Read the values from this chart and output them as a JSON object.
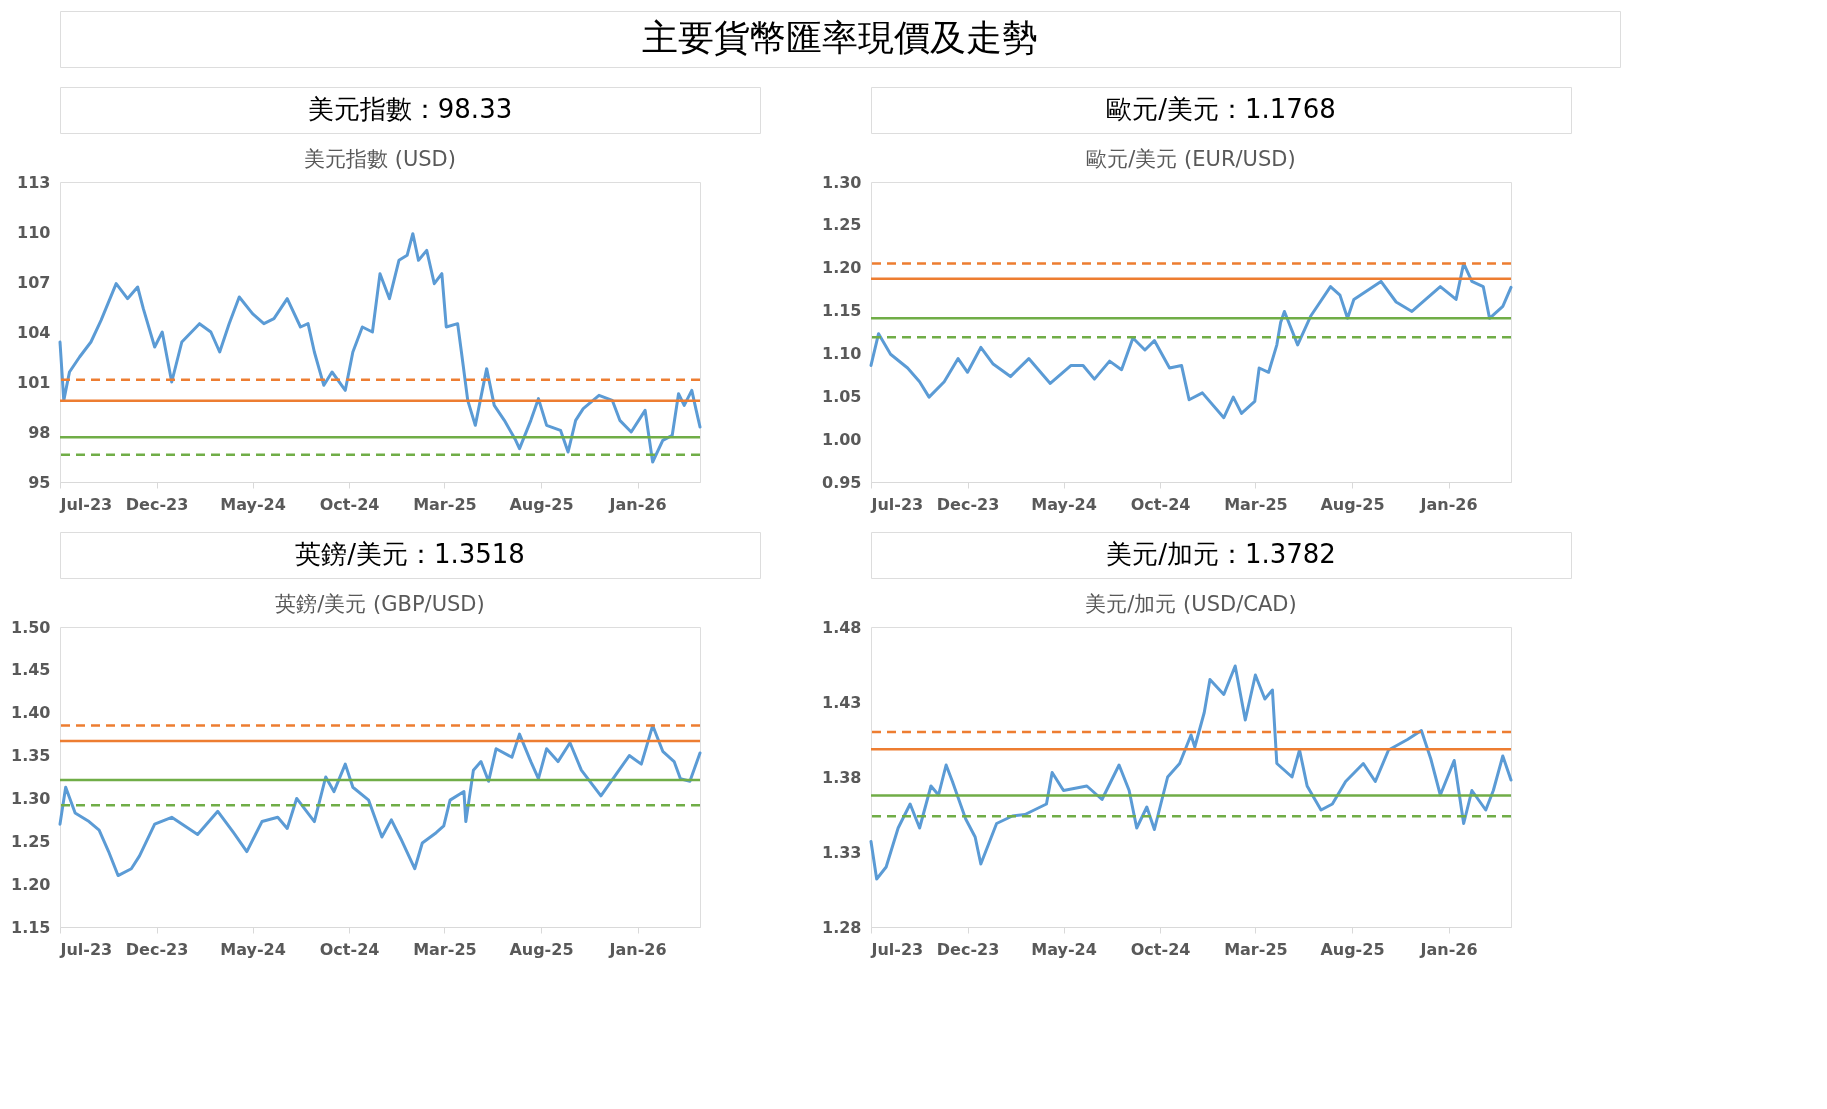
{
  "chart_data": [
    {
      "type": "other",
      "title": "主要貨幣匯率現價及走勢"
    },
    {
      "type": "line",
      "title": "美元指數 (USD)",
      "annotations": [
        "美元指數：98.33"
      ],
      "x": [
        "2023-07-01",
        "2023-07-07",
        "2023-07-16",
        "2023-08-01",
        "2023-08-19",
        "2023-09-04",
        "2023-09-28",
        "2023-10-16",
        "2023-11-01",
        "2023-11-10",
        "2023-11-28",
        "2023-12-10",
        "2023-12-25",
        "2024-01-10",
        "2024-02-07",
        "2024-02-25",
        "2024-03-10",
        "2024-03-25",
        "2024-04-10",
        "2024-05-01",
        "2024-05-19",
        "2024-06-04",
        "2024-06-25",
        "2024-07-16",
        "2024-07-28",
        "2024-08-07",
        "2024-08-22",
        "2024-09-04",
        "2024-09-25",
        "2024-10-07",
        "2024-10-22",
        "2024-11-07",
        "2024-11-19",
        "2024-12-04",
        "2024-12-19",
        "2025-01-01",
        "2025-01-10",
        "2025-01-19",
        "2025-02-01",
        "2025-02-13",
        "2025-02-25",
        "2025-03-04",
        "2025-03-22",
        "2025-03-28",
        "2025-04-07",
        "2025-04-19",
        "2025-05-07",
        "2025-05-19",
        "2025-06-04",
        "2025-06-22",
        "2025-06-28",
        "2025-07-16",
        "2025-07-28",
        "2025-08-10",
        "2025-09-01",
        "2025-09-13",
        "2025-09-25",
        "2025-10-07",
        "2025-11-01",
        "2025-11-22",
        "2025-12-04",
        "2025-12-22",
        "2026-01-13",
        "2026-01-25",
        "2026-02-10",
        "2026-02-25",
        "2026-03-07",
        "2026-03-16",
        "2026-03-28",
        "2026-04-04",
        "2026-04-10"
      ],
      "series": [
        {
          "color": "#5b9bd5",
          "values": [
            103.4,
            99.9,
            101.6,
            102.5,
            103.4,
            104.7,
            106.9,
            106.0,
            106.7,
            105.4,
            103.1,
            104.0,
            101.0,
            103.4,
            104.5,
            104.0,
            102.8,
            104.5,
            106.1,
            105.1,
            104.5,
            104.8,
            106.0,
            104.3,
            104.5,
            102.8,
            100.8,
            101.6,
            100.5,
            102.8,
            104.3,
            104.0,
            107.5,
            106.0,
            108.3,
            108.6,
            109.9,
            108.3,
            108.9,
            106.9,
            107.5,
            104.3,
            104.5,
            102.8,
            99.9,
            98.4,
            101.8,
            99.6,
            98.7,
            97.5,
            97.0,
            98.7,
            100.0,
            98.4,
            98.1,
            96.8,
            98.7,
            99.4,
            100.2,
            99.9,
            98.7,
            98.0,
            99.3,
            96.2,
            97.5,
            97.8,
            100.3,
            99.6,
            100.5,
            99.3,
            98.3
          ]
        }
      ],
      "xlim": [
        "2023-07-01",
        "2026-04-10"
      ],
      "ylim": [
        95,
        113
      ],
      "yticks": [
        95,
        98,
        101,
        104,
        107,
        110,
        113
      ],
      "xticks": [
        {
          "value": "2023-07-01",
          "label": "Jul-23"
        },
        {
          "value": "2023-12-01",
          "label": "Dec-23"
        },
        {
          "value": "2024-05-01",
          "label": "May-24"
        },
        {
          "value": "2024-10-01",
          "label": "Oct-24"
        },
        {
          "value": "2025-03-01",
          "label": "Mar-25"
        },
        {
          "value": "2025-08-01",
          "label": "Aug-25"
        },
        {
          "value": "2026-01-01",
          "label": "Jan-26"
        }
      ],
      "ref_lines": [
        {
          "axis": "y",
          "value": 101.13,
          "color": "#ed7d31",
          "line_style": "dashed"
        },
        {
          "axis": "y",
          "value": 99.88,
          "color": "#ed7d31",
          "line_style": "solid"
        },
        {
          "axis": "y",
          "value": 97.69,
          "color": "#70ad47",
          "line_style": "solid"
        },
        {
          "axis": "y",
          "value": 96.64,
          "color": "#70ad47",
          "line_style": "dashed"
        }
      ]
    },
    {
      "type": "line",
      "title": "歐元/美元 (EUR/USD)",
      "annotations": [
        "歐元/美元：1.1768"
      ],
      "x": [
        "2023-07-01",
        "2023-07-13",
        "2023-08-01",
        "2023-08-28",
        "2023-09-16",
        "2023-10-01",
        "2023-10-25",
        "2023-11-16",
        "2023-12-01",
        "2023-12-22",
        "2024-01-10",
        "2024-02-07",
        "2024-03-07",
        "2024-04-10",
        "2024-05-13",
        "2024-06-01",
        "2024-06-19",
        "2024-07-13",
        "2024-08-01",
        "2024-08-19",
        "2024-09-07",
        "2024-09-22",
        "2024-10-16",
        "2024-11-04",
        "2024-11-16",
        "2024-12-07",
        "2025-01-10",
        "2025-01-25",
        "2025-02-07",
        "2025-02-28",
        "2025-03-07",
        "2025-03-22",
        "2025-04-04",
        "2025-04-10",
        "2025-04-16",
        "2025-05-07",
        "2025-05-28",
        "2025-06-28",
        "2025-07-13",
        "2025-07-25",
        "2025-08-04",
        "2025-09-16",
        "2025-10-10",
        "2025-11-04",
        "2025-12-19",
        "2026-01-13",
        "2026-01-25",
        "2026-02-07",
        "2026-02-25",
        "2026-03-07",
        "2026-03-28",
        "2026-04-10"
      ],
      "series": [
        {
          "color": "#5b9bd5",
          "values": [
            1.086,
            1.123,
            1.099,
            1.083,
            1.067,
            1.049,
            1.067,
            1.094,
            1.078,
            1.107,
            1.088,
            1.073,
            1.094,
            1.065,
            1.086,
            1.086,
            1.07,
            1.091,
            1.081,
            1.118,
            1.104,
            1.115,
            1.083,
            1.086,
            1.046,
            1.054,
            1.025,
            1.049,
            1.03,
            1.044,
            1.083,
            1.078,
            1.11,
            1.136,
            1.149,
            1.11,
            1.144,
            1.178,
            1.168,
            1.141,
            1.163,
            1.184,
            1.16,
            1.149,
            1.178,
            1.163,
            1.205,
            1.184,
            1.178,
            1.141,
            1.155,
            1.177
          ]
        }
      ],
      "xlim": [
        "2023-07-01",
        "2026-04-10"
      ],
      "ylim": [
        0.95,
        1.3
      ],
      "yticks": [
        {
          "value": 0.95,
          "label": "0.95"
        },
        {
          "value": 1.0,
          "label": "1.00"
        },
        {
          "value": 1.05,
          "label": "1.05"
        },
        {
          "value": 1.1,
          "label": "1.10"
        },
        {
          "value": 1.15,
          "label": "1.15"
        },
        {
          "value": 1.2,
          "label": "1.20"
        },
        {
          "value": 1.25,
          "label": "1.25"
        },
        {
          "value": 1.3,
          "label": "1.30"
        }
      ],
      "xticks": [
        {
          "value": "2023-07-01",
          "label": "Jul-23"
        },
        {
          "value": "2023-12-01",
          "label": "Dec-23"
        },
        {
          "value": "2024-05-01",
          "label": "May-24"
        },
        {
          "value": "2024-10-01",
          "label": "Oct-24"
        },
        {
          "value": "2025-03-01",
          "label": "Mar-25"
        },
        {
          "value": "2025-08-01",
          "label": "Aug-25"
        },
        {
          "value": "2026-01-01",
          "label": "Jan-26"
        }
      ],
      "ref_lines": [
        {
          "axis": "y",
          "value": 1.205,
          "color": "#ed7d31",
          "line_style": "dashed"
        },
        {
          "axis": "y",
          "value": 1.187,
          "color": "#ed7d31",
          "line_style": "solid"
        },
        {
          "axis": "y",
          "value": 1.141,
          "color": "#70ad47",
          "line_style": "solid"
        },
        {
          "axis": "y",
          "value": 1.119,
          "color": "#70ad47",
          "line_style": "dashed"
        }
      ]
    },
    {
      "type": "line",
      "title": "英鎊/美元 (GBP/USD)",
      "annotations": [
        "英鎊/美元：1.3518"
      ],
      "x": [
        "2023-07-01",
        "2023-07-10",
        "2023-07-25",
        "2023-08-16",
        "2023-09-01",
        "2023-09-16",
        "2023-10-01",
        "2023-10-22",
        "2023-11-04",
        "2023-11-28",
        "2023-12-25",
        "2024-02-04",
        "2024-03-07",
        "2024-04-01",
        "2024-04-22",
        "2024-05-16",
        "2024-06-10",
        "2024-06-25",
        "2024-07-10",
        "2024-08-07",
        "2024-08-25",
        "2024-09-07",
        "2024-09-25",
        "2024-10-07",
        "2024-11-01",
        "2024-11-22",
        "2024-12-07",
        "2024-12-22",
        "2025-01-13",
        "2025-01-25",
        "2025-02-16",
        "2025-02-28",
        "2025-03-10",
        "2025-04-01",
        "2025-04-04",
        "2025-04-16",
        "2025-04-28",
        "2025-05-10",
        "2025-05-22",
        "2025-06-16",
        "2025-06-28",
        "2025-07-16",
        "2025-07-28",
        "2025-08-10",
        "2025-08-28",
        "2025-09-16",
        "2025-10-04",
        "2025-11-04",
        "2025-11-28",
        "2025-12-19",
        "2026-01-07",
        "2026-01-25",
        "2026-02-10",
        "2026-02-28",
        "2026-03-10",
        "2026-03-25",
        "2026-04-10"
      ],
      "series": [
        {
          "color": "#5b9bd5",
          "values": [
            1.27,
            1.313,
            1.283,
            1.273,
            1.263,
            1.238,
            1.21,
            1.218,
            1.233,
            1.27,
            1.278,
            1.258,
            1.285,
            1.26,
            1.238,
            1.273,
            1.278,
            1.265,
            1.3,
            1.273,
            1.325,
            1.308,
            1.34,
            1.313,
            1.298,
            1.255,
            1.275,
            1.253,
            1.218,
            1.248,
            1.26,
            1.268,
            1.298,
            1.308,
            1.273,
            1.333,
            1.343,
            1.32,
            1.358,
            1.348,
            1.375,
            1.343,
            1.323,
            1.358,
            1.343,
            1.365,
            1.333,
            1.303,
            1.328,
            1.35,
            1.34,
            1.385,
            1.355,
            1.343,
            1.323,
            1.32,
            1.353
          ]
        }
      ],
      "xlim": [
        "2023-07-01",
        "2026-04-10"
      ],
      "ylim": [
        1.15,
        1.5
      ],
      "yticks": [
        1.15,
        {
          "value": 1.2,
          "label": "1.20"
        },
        1.25,
        {
          "value": 1.3,
          "label": "1.30"
        },
        1.35,
        {
          "value": 1.4,
          "label": "1.40"
        },
        1.45,
        {
          "value": 1.5,
          "label": "1.50"
        }
      ],
      "xticks": [
        {
          "value": "2023-07-01",
          "label": "Jul-23"
        },
        {
          "value": "2023-12-01",
          "label": "Dec-23"
        },
        {
          "value": "2024-05-01",
          "label": "May-24"
        },
        {
          "value": "2024-10-01",
          "label": "Oct-24"
        },
        {
          "value": "2025-03-01",
          "label": "Mar-25"
        },
        {
          "value": "2025-08-01",
          "label": "Aug-25"
        },
        {
          "value": "2026-01-01",
          "label": "Jan-26"
        }
      ],
      "ref_lines": [
        {
          "axis": "y",
          "value": 1.385,
          "color": "#ed7d31",
          "line_style": "dashed"
        },
        {
          "axis": "y",
          "value": 1.367,
          "color": "#ed7d31",
          "line_style": "solid"
        },
        {
          "axis": "y",
          "value": 1.3215,
          "color": "#70ad47",
          "line_style": "solid"
        },
        {
          "axis": "y",
          "value": 1.292,
          "color": "#70ad47",
          "line_style": "dashed"
        }
      ]
    },
    {
      "type": "line",
      "title": "美元/加元 (USD/CAD)",
      "annotations": [
        "美元/加元：1.3782"
      ],
      "x": [
        "2023-07-01",
        "2023-07-10",
        "2023-07-25",
        "2023-08-13",
        "2023-09-01",
        "2023-09-16",
        "2023-10-04",
        "2023-10-16",
        "2023-10-28",
        "2023-11-07",
        "2023-11-28",
        "2023-12-13",
        "2023-12-22",
        "2024-01-16",
        "2024-02-10",
        "2024-03-01",
        "2024-04-04",
        "2024-04-13",
        "2024-05-01",
        "2024-06-07",
        "2024-07-01",
        "2024-07-28",
        "2024-08-13",
        "2024-08-25",
        "2024-09-10",
        "2024-09-22",
        "2024-10-13",
        "2024-11-01",
        "2024-11-19",
        "2024-11-25",
        "2024-12-10",
        "2024-12-19",
        "2025-01-10",
        "2025-01-28",
        "2025-02-13",
        "2025-03-01",
        "2025-03-16",
        "2025-03-28",
        "2025-04-04",
        "2025-04-28",
        "2025-05-10",
        "2025-05-22",
        "2025-06-13",
        "2025-07-01",
        "2025-07-22",
        "2025-08-19",
        "2025-09-07",
        "2025-09-28",
        "2025-10-28",
        "2025-11-19",
        "2025-12-04",
        "2025-12-19",
        "2026-01-10",
        "2026-01-25",
        "2026-02-07",
        "2026-03-01",
        "2026-03-13",
        "2026-03-28",
        "2026-04-10"
      ],
      "series": [
        {
          "color": "#5b9bd5",
          "values": [
            1.337,
            1.312,
            1.32,
            1.346,
            1.362,
            1.346,
            1.374,
            1.368,
            1.388,
            1.377,
            1.352,
            1.34,
            1.322,
            1.349,
            1.354,
            1.355,
            1.362,
            1.383,
            1.371,
            1.374,
            1.365,
            1.388,
            1.371,
            1.346,
            1.36,
            1.345,
            1.38,
            1.389,
            1.408,
            1.4,
            1.423,
            1.445,
            1.435,
            1.454,
            1.418,
            1.448,
            1.432,
            1.438,
            1.389,
            1.38,
            1.398,
            1.374,
            1.358,
            1.362,
            1.377,
            1.389,
            1.377,
            1.398,
            1.405,
            1.411,
            1.392,
            1.368,
            1.391,
            1.349,
            1.371,
            1.358,
            1.371,
            1.394,
            1.378
          ]
        }
      ],
      "xlim": [
        "2023-07-01",
        "2026-04-10"
      ],
      "ylim": [
        1.28,
        1.48
      ],
      "yticks": [
        1.28,
        1.33,
        1.38,
        1.43,
        1.48
      ],
      "xticks": [
        {
          "value": "2023-07-01",
          "label": "Jul-23"
        },
        {
          "value": "2023-12-01",
          "label": "Dec-23"
        },
        {
          "value": "2024-05-01",
          "label": "May-24"
        },
        {
          "value": "2024-10-01",
          "label": "Oct-24"
        },
        {
          "value": "2025-03-01",
          "label": "Mar-25"
        },
        {
          "value": "2025-08-01",
          "label": "Aug-25"
        },
        {
          "value": "2026-01-01",
          "label": "Jan-26"
        }
      ],
      "ref_lines": [
        {
          "axis": "y",
          "value": 1.41,
          "color": "#ed7d31",
          "line_style": "dashed"
        },
        {
          "axis": "y",
          "value": 1.3985,
          "color": "#ed7d31",
          "line_style": "solid"
        },
        {
          "axis": "y",
          "value": 1.3677,
          "color": "#70ad47",
          "line_style": "solid"
        },
        {
          "axis": "y",
          "value": 1.3538,
          "color": "#70ad47",
          "line_style": "dashed"
        }
      ]
    }
  ]
}
